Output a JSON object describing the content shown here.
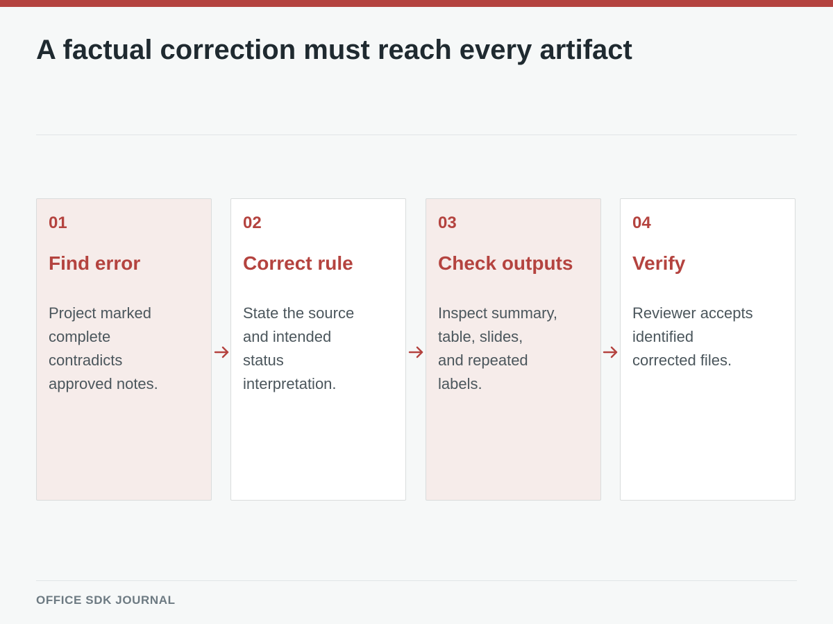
{
  "title": "A factual correction must reach every artifact",
  "colors": {
    "accent": "#b4433f",
    "tinted_card": "#f6ecea",
    "plain_card": "#ffffff",
    "background": "#f6f8f8"
  },
  "steps": [
    {
      "number": "01",
      "title": "Find error",
      "body": "Project marked\ncomplete\ncontradicts\napproved notes."
    },
    {
      "number": "02",
      "title": "Correct rule",
      "body": "State the source\nand intended\nstatus\ninterpretation."
    },
    {
      "number": "03",
      "title": "Check outputs",
      "body": "Inspect summary,\ntable, slides,\nand repeated\nlabels."
    },
    {
      "number": "04",
      "title": "Verify",
      "body": "Reviewer accepts\nidentified\ncorrected files."
    }
  ],
  "connector_icon": "arrow-right-icon",
  "footer": {
    "label": "OFFICE SDK JOURNAL"
  }
}
